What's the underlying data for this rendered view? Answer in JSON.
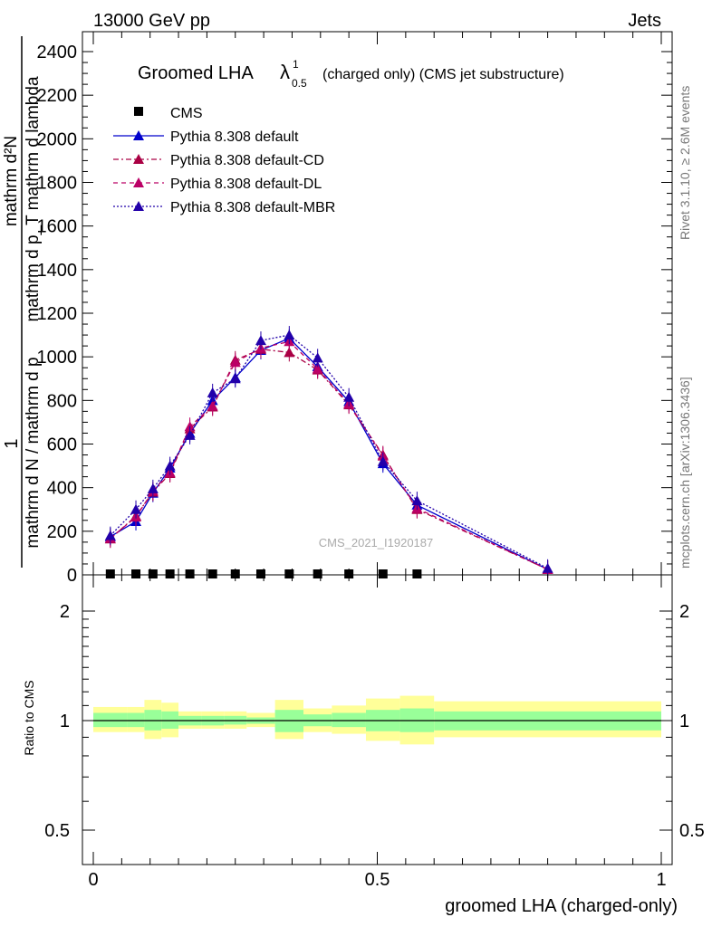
{
  "header": {
    "left": "13000 GeV pp",
    "right": "Jets"
  },
  "side_labels": {
    "rivet": "Rivet 3.1.10, ≥ 2.6M events",
    "mcplots": "mcplots.cern.ch [arXiv:1306.3436]"
  },
  "watermark": "CMS_2021_I1920187",
  "colors": {
    "cms": "#000000",
    "default": "#0000cc",
    "cd": "#aa0044",
    "dl": "#bb0066",
    "mbr": "#2200aa",
    "band_yellow": "#ffff99",
    "band_green": "#99ff99"
  },
  "chart_data": [
    {
      "type": "line",
      "title_main": "Groomed LHA",
      "title_symbol": "λ",
      "title_sup": "1",
      "title_sub": "0.5",
      "title_rest": "(charged only) (CMS jet substructure)",
      "ylabel_top": "1",
      "ylabel_num_lower": "mathrm d N / mathrm d p_mathrm d p",
      "ylabel_denominator": "mathrm d N / mathrm d p_mathrm d p",
      "ylabel_left": "mathrm d N / mathrm d p",
      "ylabel_frac_num": "mathrm d²N",
      "ylabel_frac_den": "mathrm d p_T mathrm d lambda",
      "ylabel_full": "1 / (mathrm d N / mathrm d p_T) · mathrm d²N / (mathrm d p_T mathrm d lambda)",
      "xlim": [
        0,
        1
      ],
      "ylim": [
        0,
        2500
      ],
      "yticks": [
        "0",
        "200",
        "400",
        "600",
        "800",
        "1000",
        "1200",
        "1400",
        "1600",
        "1800",
        "2000",
        "2200",
        "2400"
      ],
      "legend_position": "top-left",
      "series": [
        {
          "name": "CMS",
          "x": [
            0.03,
            0.075,
            0.105,
            0.135,
            0.17,
            0.21,
            0.25,
            0.295,
            0.345,
            0.395,
            0.45,
            0.51,
            0.57
          ],
          "values": [
            0,
            0,
            0,
            0,
            0,
            0,
            0,
            0,
            0,
            0,
            0,
            0,
            0
          ]
        },
        {
          "name": "Pythia 8.308 default",
          "x": [
            0.03,
            0.075,
            0.105,
            0.135,
            0.17,
            0.21,
            0.25,
            0.295,
            0.345,
            0.395,
            0.45,
            0.51,
            0.57,
            0.8
          ],
          "values": [
            175,
            245,
            375,
            490,
            650,
            800,
            905,
            1030,
            1085,
            955,
            795,
            510,
            320,
            25
          ]
        },
        {
          "name": "Pythia 8.308 default-CD",
          "x": [
            0.03,
            0.075,
            0.105,
            0.135,
            0.17,
            0.21,
            0.25,
            0.295,
            0.345,
            0.395,
            0.45,
            0.51,
            0.57,
            0.8
          ],
          "values": [
            165,
            270,
            380,
            465,
            670,
            770,
            985,
            1035,
            1020,
            940,
            780,
            550,
            300,
            25
          ]
        },
        {
          "name": "Pythia 8.308 default-DL",
          "x": [
            0.03,
            0.075,
            0.105,
            0.135,
            0.17,
            0.21,
            0.25,
            0.295,
            0.345,
            0.395,
            0.45,
            0.51,
            0.57,
            0.8
          ],
          "values": [
            168,
            265,
            385,
            470,
            680,
            775,
            975,
            1040,
            1070,
            945,
            785,
            545,
            305,
            25
          ]
        },
        {
          "name": "Pythia 8.308 default-MBR",
          "x": [
            0.03,
            0.075,
            0.105,
            0.135,
            0.17,
            0.21,
            0.25,
            0.295,
            0.345,
            0.395,
            0.45,
            0.51,
            0.57,
            0.8
          ],
          "values": [
            180,
            300,
            395,
            500,
            640,
            835,
            900,
            1075,
            1100,
            995,
            815,
            520,
            340,
            30
          ]
        }
      ]
    },
    {
      "type": "area",
      "ylabel": "Ratio to CMS",
      "xlabel": "groomed LHA (charged-only)",
      "xlim": [
        0,
        1
      ],
      "ylim": [
        0.4,
        2.4
      ],
      "log_y": true,
      "yticks": [
        "0.5",
        "1",
        "2"
      ],
      "xticks": [
        "0",
        "0.5",
        "1"
      ],
      "bins": [
        0,
        0.06,
        0.09,
        0.12,
        0.15,
        0.19,
        0.23,
        0.27,
        0.32,
        0.37,
        0.42,
        0.48,
        0.54,
        0.6,
        1.0
      ],
      "band_yellow_lo": [
        0.93,
        0.93,
        0.89,
        0.9,
        0.95,
        0.95,
        0.95,
        0.96,
        0.89,
        0.93,
        0.92,
        0.88,
        0.86,
        0.9
      ],
      "band_yellow_hi": [
        1.09,
        1.09,
        1.14,
        1.12,
        1.06,
        1.06,
        1.06,
        1.05,
        1.14,
        1.08,
        1.1,
        1.15,
        1.17,
        1.13
      ],
      "band_green_lo": [
        0.96,
        0.96,
        0.94,
        0.95,
        0.97,
        0.97,
        0.975,
        0.98,
        0.93,
        0.965,
        0.96,
        0.935,
        0.93,
        0.94
      ],
      "band_green_hi": [
        1.05,
        1.05,
        1.07,
        1.06,
        1.03,
        1.03,
        1.03,
        1.02,
        1.07,
        1.04,
        1.05,
        1.07,
        1.08,
        1.06
      ],
      "ratio_line": 1
    }
  ]
}
